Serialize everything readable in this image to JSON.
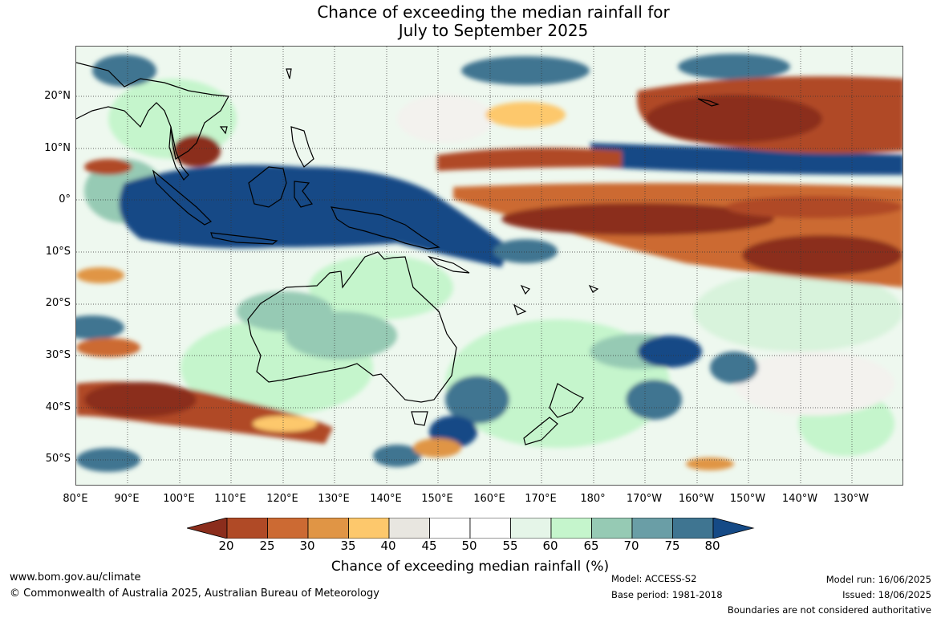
{
  "title_line1": "Chance of exceeding the median rainfall for",
  "title_line2": "July to September 2025",
  "lat_labels": [
    "20°N",
    "10°N",
    "0°",
    "10°S",
    "20°S",
    "30°S",
    "40°S",
    "50°S"
  ],
  "lon_labels": [
    "80°E",
    "90°E",
    "100°E",
    "110°E",
    "120°E",
    "130°E",
    "140°E",
    "150°E",
    "160°E",
    "170°E",
    "180°",
    "170°W",
    "160°W",
    "150°W",
    "140°W",
    "130°W"
  ],
  "colorbar": {
    "ticks": [
      "20",
      "25",
      "30",
      "35",
      "40",
      "45",
      "50",
      "55",
      "60",
      "65",
      "70",
      "75",
      "80"
    ],
    "colors": [
      "#8b2d1c",
      "#b04a26",
      "#cc6a33",
      "#e09545",
      "#fdc86c",
      "#e8e6e0",
      "#ffffff",
      "#ffffff",
      "#e5f5e8",
      "#c5f5cc",
      "#96cab4",
      "#6a9ea6",
      "#3f7591",
      "#154a86"
    ],
    "label": "Chance of exceeding median rainfall (%)"
  },
  "footer": {
    "website": "www.bom.gov.au/climate",
    "copyright": "© Commonwealth of Australia 2025, Australian Bureau of Meteorology",
    "model": "Model: ACCESS-S2",
    "base_period": "Base period: 1981-2018",
    "model_run": "Model run: 16/06/2025",
    "issued": "Issued: 18/06/2025",
    "disclaimer": "Boundaries are not considered authoritative"
  }
}
